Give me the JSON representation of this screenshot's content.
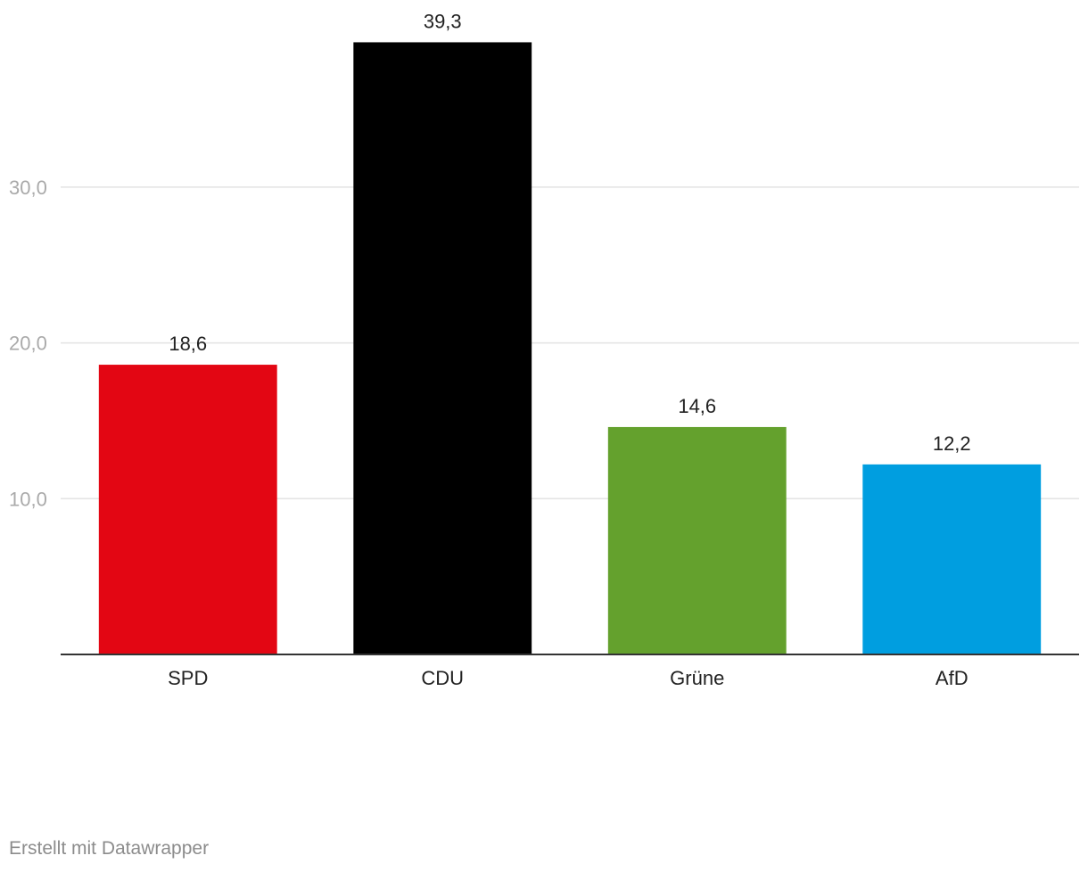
{
  "chart_data": {
    "type": "bar",
    "categories": [
      "SPD",
      "CDU",
      "Grüne",
      "AfD"
    ],
    "values": [
      18.6,
      39.3,
      14.6,
      12.2
    ],
    "value_labels": [
      "18,6",
      "39,3",
      "14,6",
      "12,2"
    ],
    "colors": [
      "#e30613",
      "#000000",
      "#64a12d",
      "#009ee0"
    ],
    "y_ticks": [
      10,
      20,
      30
    ],
    "y_tick_labels": [
      "10,0",
      "20,0",
      "30,0"
    ],
    "ylim": [
      0,
      40
    ],
    "grid": true,
    "title": "",
    "xlabel": "",
    "ylabel": ""
  },
  "footer": {
    "credit": "Erstellt mit Datawrapper"
  }
}
